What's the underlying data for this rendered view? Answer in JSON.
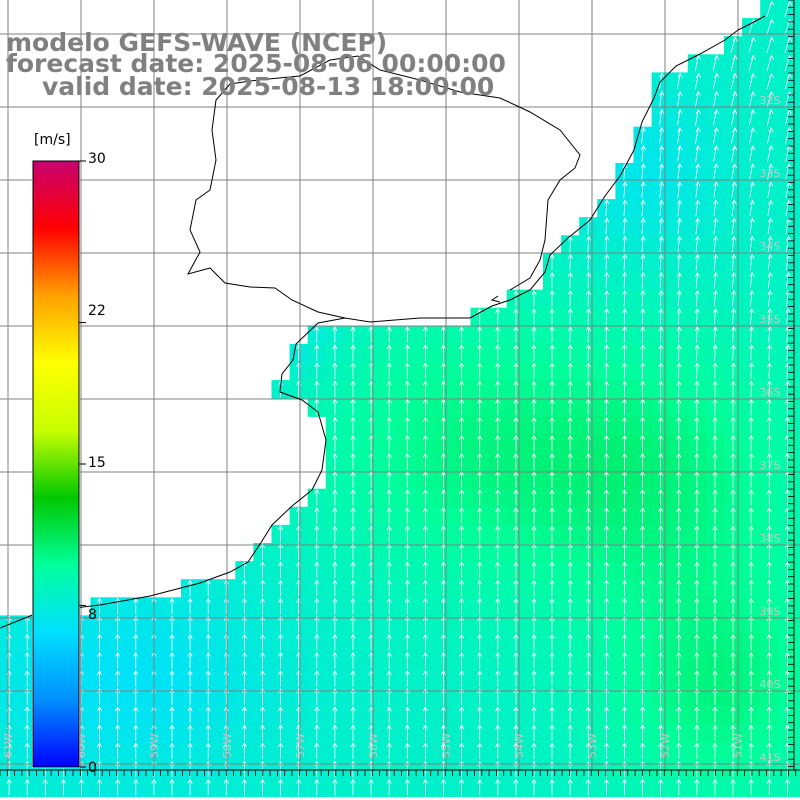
{
  "title": {
    "line1": "modelo GEFS-WAVE (NCEP)",
    "line2": "forecast date: 2025-08-06 00:00:00",
    "line3": "valid date: 2025-08-13 18:00:00"
  },
  "colorbar": {
    "unit": "[m/s]",
    "ticks": [
      "30",
      "22",
      "15",
      "8",
      "0"
    ],
    "tick_values": [
      30,
      22,
      15,
      8,
      0
    ],
    "range": [
      0,
      30
    ],
    "colors": [
      "#0000ff",
      "#0090ff",
      "#00e0ff",
      "#00ff9c",
      "#00c800",
      "#c8ff00",
      "#ffff00",
      "#ffa000",
      "#ff0000",
      "#c80070"
    ]
  },
  "map": {
    "lon_labels": [
      "61W",
      "60W",
      "59W",
      "58W",
      "57W",
      "56W",
      "55W",
      "54W",
      "53W",
      "52W",
      "51W"
    ],
    "lat_labels": [
      "32S",
      "33S",
      "34S",
      "35S",
      "36S",
      "37S",
      "38S",
      "39S",
      "40S",
      "41S"
    ],
    "land_color": "#ffffff",
    "grid_color": "#808080",
    "arrow_color": "#ffffff",
    "wind_direction": "from south"
  }
}
